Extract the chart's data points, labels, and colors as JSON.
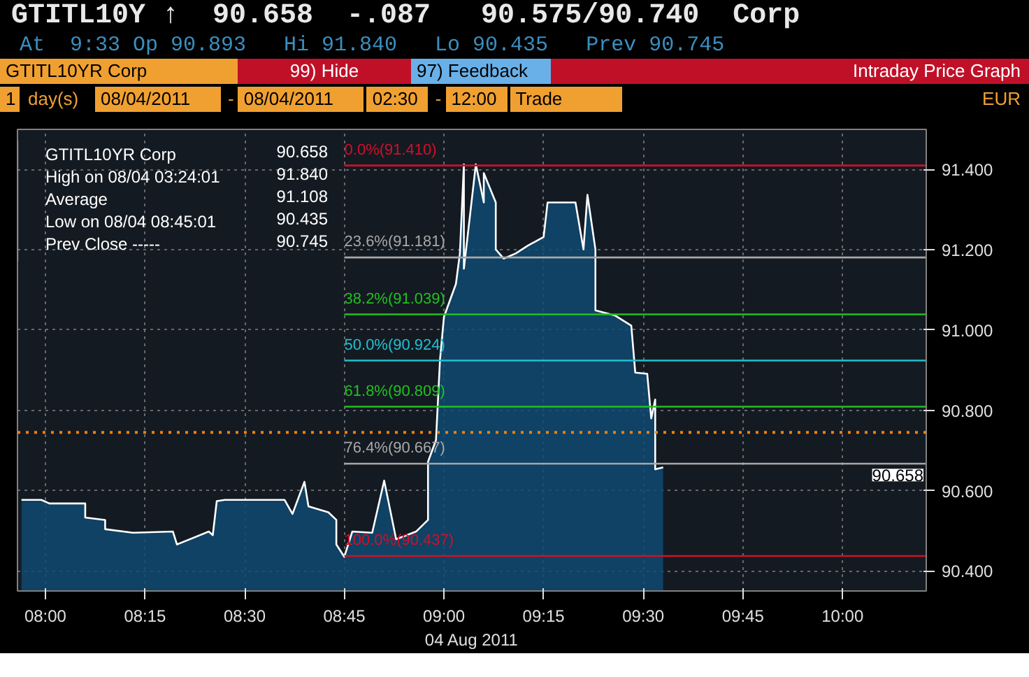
{
  "chart_data": {
    "type": "area",
    "title": "GTITL10Y ↑  90.658  -.087   90.575/90.740  Corp",
    "subtitle": "At  9:33 Op 90.893   Hi 91.840   Lo 90.435   Prev 90.745",
    "xlabel": "04 Aug 2011",
    "annotations": [
      "GTITL10YR Corp",
      "99) Hide",
      "97) Feedback",
      "Intraday Price Graph",
      "1",
      "day(s)",
      "08/04/2011",
      "-",
      "08/04/2011",
      "02:30",
      "-",
      "12:00",
      "Trade",
      "EUR",
      "GTITL10YR Corp",
      "90.658",
      "High on 08/04 03:24:01",
      "91.840",
      "Average",
      "91.108",
      "Low on 08/04 08:45:01",
      "90.435",
      "Prev Close -----",
      "90.745",
      {
        "text": "90.658",
        "y": 90.658
      }
    ],
    "series": [
      {
        "color": "#0e4a70",
        "x": [
          7.94,
          7.99,
          8.01,
          8.1,
          8.1,
          8.15,
          8.15,
          8.22,
          8.32,
          8.33,
          8.41,
          8.42,
          8.43,
          8.45,
          8.6,
          8.62,
          8.65,
          8.66,
          8.71,
          8.73,
          8.73,
          8.75,
          8.77,
          8.82,
          8.85,
          8.88,
          8.93,
          8.96,
          8.96,
          8.98,
          8.99,
          9.0,
          9.03,
          9.04,
          9.05,
          9.05,
          9.08,
          9.1,
          9.1,
          9.13,
          9.13,
          9.15,
          9.18,
          9.21,
          9.25,
          9.26,
          9.33,
          9.35,
          9.36,
          9.38,
          9.38,
          9.43,
          9.47,
          9.48,
          9.51,
          9.52,
          9.53,
          9.53,
          9.55
        ],
        "values": [
          90.577,
          90.577,
          90.568,
          90.568,
          90.533,
          90.527,
          90.504,
          90.495,
          90.498,
          90.466,
          90.498,
          90.489,
          90.574,
          90.577,
          90.577,
          90.542,
          90.622,
          90.561,
          90.546,
          90.527,
          90.466,
          90.435,
          90.498,
          90.495,
          90.625,
          90.479,
          90.498,
          90.527,
          90.672,
          90.726,
          90.925,
          91.033,
          91.115,
          91.191,
          91.413,
          91.153,
          91.413,
          91.318,
          91.391,
          91.318,
          91.201,
          91.178,
          91.191,
          91.21,
          91.232,
          91.318,
          91.318,
          91.201,
          91.337,
          91.201,
          91.049,
          91.036,
          91.011,
          90.894,
          90.891,
          90.78,
          90.827,
          90.653,
          90.658
        ]
      }
    ],
    "xlim": [
      7.93,
      10.21
    ],
    "ylim": [
      90.35,
      91.5
    ],
    "xticks": [
      {
        "value": 8,
        "label": "08:00"
      },
      {
        "value": 8.25,
        "label": "08:15"
      },
      {
        "value": 8.5,
        "label": "08:30"
      },
      {
        "value": 8.75,
        "label": "08:45"
      },
      {
        "value": 9,
        "label": "09:00"
      },
      {
        "value": 9.25,
        "label": "09:15"
      },
      {
        "value": 9.5,
        "label": "09:30"
      },
      {
        "value": 9.75,
        "label": "09:45"
      },
      {
        "value": 10,
        "label": "10:00"
      }
    ],
    "yticks": [
      {
        "value": 90.4,
        "label": "90.400"
      },
      {
        "value": 90.6,
        "label": "90.600"
      },
      {
        "value": 90.8,
        "label": "90.800"
      },
      {
        "value": 91.0,
        "label": "91.000"
      },
      {
        "value": 91.2,
        "label": "91.200"
      },
      {
        "value": 91.4,
        "label": "91.400"
      }
    ],
    "grid": true,
    "line_style": "solid",
    "marker": "none",
    "ref_lines": [
      {
        "axis": "y",
        "value": 91.41,
        "label": "0.0%(91.410)",
        "color": "#d01028"
      },
      {
        "axis": "y",
        "value": 91.181,
        "label": "23.6%(91.181)",
        "color": "#a8a8a8"
      },
      {
        "axis": "y",
        "value": 91.039,
        "label": "38.2%(91.039)",
        "color": "#20c020"
      },
      {
        "axis": "y",
        "value": 90.924,
        "label": "50.0%(90.924)",
        "color": "#20c0d0"
      },
      {
        "axis": "y",
        "value": 90.809,
        "label": "61.8%(90.809)",
        "color": "#20c020"
      },
      {
        "axis": "y",
        "value": 90.745,
        "label": null,
        "color": "#f08010",
        "line_style": "dotted"
      },
      {
        "axis": "y",
        "value": 90.667,
        "label": "76.4%(90.667)",
        "color": "#a8a8a8"
      },
      {
        "axis": "y",
        "value": 90.437,
        "label": "100.0%(90.437)",
        "color": "#d01028"
      }
    ]
  }
}
